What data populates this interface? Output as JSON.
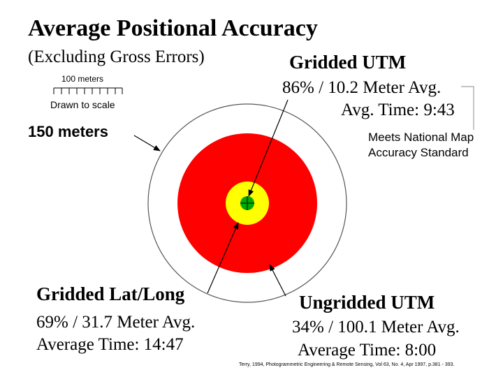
{
  "title": "Average Positional Accuracy",
  "subtitle": "(Excluding Gross Errors)",
  "scale_bar": {
    "label": "100 meters",
    "caption": "Drawn to scale"
  },
  "outer_ring_label": "150 meters",
  "gridded_utm": {
    "title": "Gridded UTM",
    "accuracy": "86% / 10.2 Meter Avg.",
    "time": "Avg. Time:  9:43",
    "color": "#00aa00"
  },
  "nmas_note": {
    "line1": "Meets National Map",
    "line2": "Accuracy Standard"
  },
  "gridded_latlong": {
    "title": "Gridded Lat/Long",
    "accuracy": "69% / 31.7  Meter Avg.",
    "time": "Average Time: 14:47",
    "color": "#ffff00"
  },
  "ungridded_utm": {
    "title": "Ungridded UTM",
    "accuracy": "34% / 100.1 Meter Avg.",
    "time": "Average Time: 8:00",
    "color": "#ff0000"
  },
  "citation": "Terry, 1994, Photogrammetric Engineering & Remote Sensing, Vol 63, No. 4, Apr 1997, p.381 - 393."
}
